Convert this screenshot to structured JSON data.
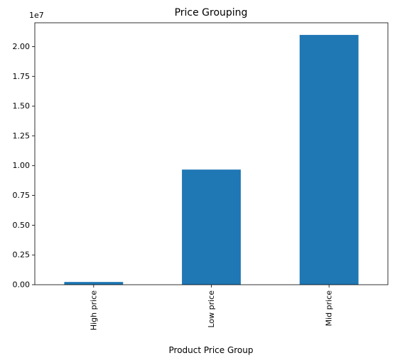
{
  "chart_data": {
    "type": "bar",
    "title": "Price Grouping",
    "xlabel": "Product Price Group",
    "ylabel": "",
    "categories": [
      "High price",
      "Low price",
      "Mid price"
    ],
    "values": [
      230000,
      9670000,
      20980000
    ],
    "ylim": [
      0,
      22000000
    ],
    "yticks": [
      0,
      2500000,
      5000000,
      7500000,
      10000000,
      12500000,
      15000000,
      17500000,
      20000000
    ],
    "ytick_labels": [
      "0.00",
      "0.25",
      "0.50",
      "0.75",
      "1.00",
      "1.25",
      "1.50",
      "1.75",
      "2.00"
    ],
    "y_offset_label": "1e7",
    "grid": false,
    "bar_color": "#1f77b4"
  }
}
